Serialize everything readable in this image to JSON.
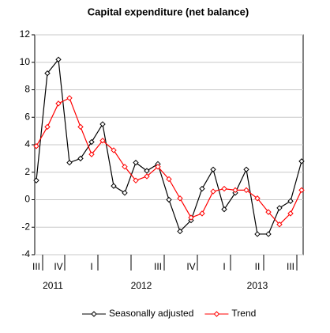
{
  "chart_data": {
    "type": "line",
    "title": "Capital expenditure (net balance)",
    "categories": [
      "III",
      null,
      "IV",
      null,
      null,
      "I",
      null,
      null,
      null,
      null,
      null,
      "III",
      null,
      null,
      "IV",
      null,
      null,
      "I",
      null,
      null,
      "II",
      null,
      null,
      "III",
      null
    ],
    "x_groups": [
      {
        "label": "2011",
        "start": 0,
        "end": 3
      },
      {
        "label": "2012",
        "start": 4,
        "end": 15
      },
      {
        "label": "2013",
        "start": 16,
        "end": 24
      }
    ],
    "series": [
      {
        "name": "Seasonally adjusted",
        "color": "#000000",
        "values": [
          1.4,
          9.2,
          10.2,
          2.7,
          3.0,
          4.2,
          5.5,
          1.0,
          0.5,
          2.7,
          2.1,
          2.6,
          0.0,
          -2.3,
          -1.5,
          0.8,
          2.2,
          -0.7,
          0.5,
          2.2,
          -2.5,
          -2.5,
          -0.6,
          -0.1,
          2.8
        ]
      },
      {
        "name": "Trend",
        "color": "#ff0000",
        "values": [
          3.9,
          5.3,
          7.0,
          7.4,
          5.3,
          3.3,
          4.3,
          3.6,
          2.4,
          1.4,
          1.7,
          2.4,
          1.5,
          0.1,
          -1.3,
          -1.0,
          0.6,
          0.8,
          0.7,
          0.7,
          0.1,
          -0.9,
          -1.8,
          -1.0,
          0.7
        ]
      }
    ],
    "ylim": [
      -4,
      12
    ],
    "yticks": [
      -4,
      -2,
      0,
      2,
      4,
      6,
      8,
      10,
      12
    ],
    "grid": true,
    "legend": "bottom"
  }
}
